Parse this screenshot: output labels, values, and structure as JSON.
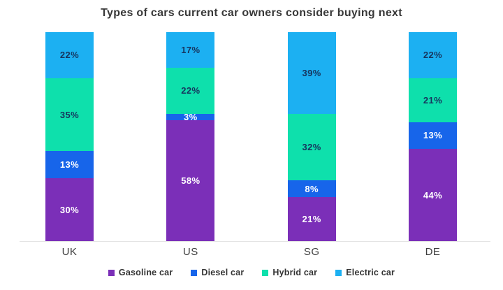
{
  "title": "Types of cars current car owners consider buying next",
  "chart_data": {
    "type": "bar",
    "variant": "stacked-percent",
    "title": "Types of cars current car owners consider buying next",
    "categories": [
      "UK",
      "US",
      "SG",
      "DE"
    ],
    "series": [
      {
        "name": "Gasoline car",
        "color": "#7B2FB8",
        "label_color": "#FFFFFF",
        "values": [
          30,
          58,
          21,
          44
        ]
      },
      {
        "name": "Diesel car",
        "color": "#1765EA",
        "label_color": "#FFFFFF",
        "values": [
          13,
          3,
          8,
          13
        ]
      },
      {
        "name": "Hybrid car",
        "color": "#0EE0AC",
        "label_color": "#16355E",
        "values": [
          35,
          22,
          32,
          21
        ]
      },
      {
        "name": "Electric car",
        "color": "#1CB0F2",
        "label_color": "#16355E",
        "values": [
          22,
          17,
          39,
          22
        ]
      }
    ],
    "value_suffix": "%",
    "ylim": [
      0,
      100
    ],
    "grid": false,
    "stack_order_bottom_to_top": [
      "Gasoline car",
      "Diesel car",
      "Hybrid car",
      "Electric car"
    ],
    "legend_position": "bottom",
    "axis_line_color": "#E3E3E3",
    "category_label_color": "#3D3D3D",
    "title_color": "#383838",
    "background_color": "#FFFFFF"
  }
}
